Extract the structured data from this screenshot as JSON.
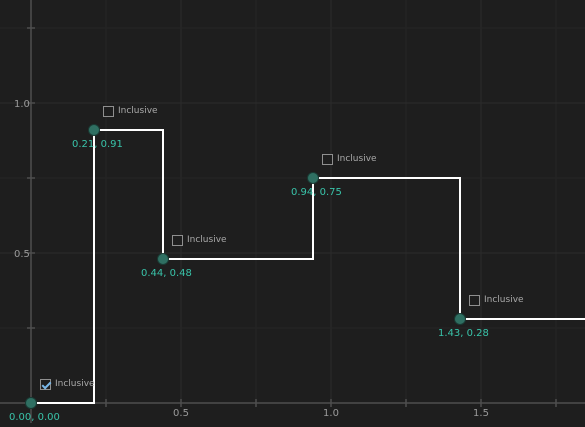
{
  "chart_data": {
    "type": "line",
    "step": "post",
    "xlim": [
      -0.1,
      1.85
    ],
    "ylim": [
      0,
      1.3
    ],
    "x_ticks": [
      0.5,
      1.0,
      1.5
    ],
    "x_tick_labels": [
      "0.5",
      "1.0",
      "1.5"
    ],
    "y_ticks": [
      0.5,
      1.0
    ],
    "y_tick_labels": [
      "0.5",
      "1.0"
    ],
    "grid": true,
    "series": [
      {
        "points": [
          {
            "x": 0.0,
            "y": 0.0,
            "label": "0.00, 0.00",
            "inclusive": true
          },
          {
            "x": 0.21,
            "y": 0.91,
            "label": "0.21, 0.91",
            "inclusive": false
          },
          {
            "x": 0.44,
            "y": 0.48,
            "label": "0.44, 0.48",
            "inclusive": false
          },
          {
            "x": 0.94,
            "y": 0.75,
            "label": "0.94, 0.75",
            "inclusive": false
          },
          {
            "x": 1.43,
            "y": 0.28,
            "label": "1.43, 0.28",
            "inclusive": false
          }
        ]
      }
    ]
  },
  "ui": {
    "inclusive_label": "Inclusive"
  },
  "colors": {
    "background": "#1e1e1e",
    "grid": "#2c2c2c",
    "axis": "#4e4e4e",
    "step_line": "#ffffff",
    "point_fill": "#2f6f62",
    "point_label": "#39c3a9",
    "tick_label": "#9a9a9a"
  }
}
